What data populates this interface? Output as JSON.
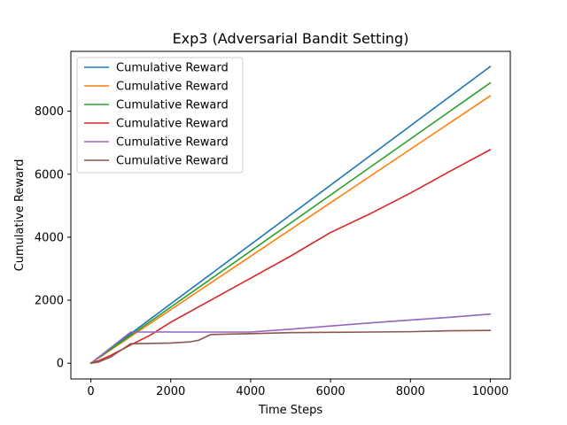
{
  "chart_data": {
    "type": "line",
    "title": "Exp3 (Adversarial Bandit Setting)",
    "xlabel": "Time Steps",
    "ylabel": "Cumulative Reward",
    "xlim": [
      -500,
      10500
    ],
    "ylim": [
      -500,
      9900
    ],
    "xticks": [
      0,
      2000,
      4000,
      6000,
      8000,
      10000
    ],
    "yticks": [
      0,
      2000,
      4000,
      6000,
      8000
    ],
    "xtick_labels": [
      "0",
      "2000",
      "4000",
      "6000",
      "8000",
      "10000"
    ],
    "ytick_labels": [
      "0",
      "2000",
      "4000",
      "6000",
      "8000"
    ],
    "grid": false,
    "legend_position": "top-left",
    "series": [
      {
        "name": "Cumulative Reward",
        "color": "#1f77b4",
        "x": [
          0,
          10000
        ],
        "y": [
          0,
          9420
        ]
      },
      {
        "name": "Cumulative Reward",
        "color": "#ff7f0e",
        "x": [
          0,
          10000
        ],
        "y": [
          0,
          8490
        ]
      },
      {
        "name": "Cumulative Reward",
        "color": "#2ca02c",
        "x": [
          0,
          10000
        ],
        "y": [
          0,
          8900
        ]
      },
      {
        "name": "Cumulative Reward",
        "color": "#d62728",
        "x": [
          0,
          200,
          500,
          1000,
          1500,
          2000,
          3000,
          4000,
          5000,
          6000,
          7000,
          8000,
          9000,
          10000
        ],
        "y": [
          0,
          80,
          250,
          580,
          900,
          1300,
          2000,
          2700,
          3400,
          4150,
          4750,
          5400,
          6100,
          6780
        ]
      },
      {
        "name": "Cumulative Reward",
        "color": "#9467bd",
        "x": [
          0,
          1000,
          2000,
          3000,
          4000,
          5000,
          6000,
          7000,
          8000,
          9000,
          10000
        ],
        "y": [
          0,
          990,
          990,
          990,
          990,
          1080,
          1180,
          1280,
          1370,
          1460,
          1560
        ]
      },
      {
        "name": "Cumulative Reward",
        "color": "#8c564b",
        "x": [
          0,
          200,
          500,
          800,
          1000,
          2000,
          2500,
          2700,
          3000,
          4000,
          5000,
          6000,
          7000,
          8000,
          9000,
          10000
        ],
        "y": [
          0,
          40,
          200,
          450,
          620,
          640,
          680,
          730,
          910,
          940,
          970,
          980,
          990,
          1000,
          1030,
          1040
        ]
      }
    ]
  }
}
